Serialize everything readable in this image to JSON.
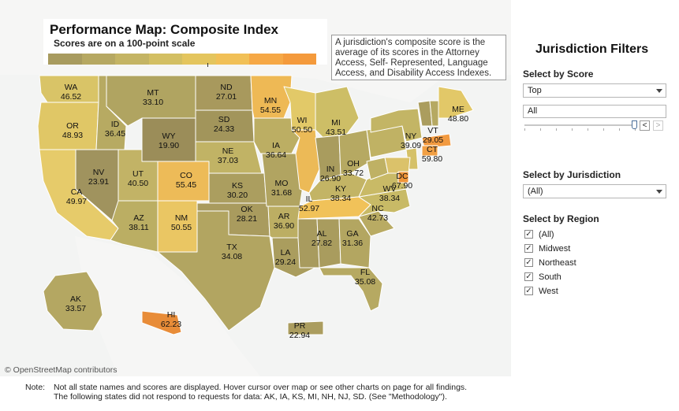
{
  "map": {
    "title": "Performance Map: Composite Index",
    "subtitle": "Scores are on a 100-point scale",
    "info_text": "A jurisdiction's composite score is the average of its scores in the Attorney Access, Self- Represented, Language Access, and Disability Access Indexes.",
    "attribution": "© OpenStreetMap contributors",
    "legend_colors": [
      "#a89b5f",
      "#b6a862",
      "#c4b464",
      "#d3bf63",
      "#e4c55e",
      "#f1c057",
      "#f6a846",
      "#f49a3c"
    ],
    "states": [
      {
        "abbr": "WA",
        "score": "46.52"
      },
      {
        "abbr": "OR",
        "score": "48.93"
      },
      {
        "abbr": "CA",
        "score": "49.97"
      },
      {
        "abbr": "ID",
        "score": "36.45"
      },
      {
        "abbr": "NV",
        "score": "23.91"
      },
      {
        "abbr": "MT",
        "score": "33.10"
      },
      {
        "abbr": "WY",
        "score": "19.90"
      },
      {
        "abbr": "UT",
        "score": "40.50"
      },
      {
        "abbr": "AZ",
        "score": "38.11"
      },
      {
        "abbr": "CO",
        "score": "55.45"
      },
      {
        "abbr": "NM",
        "score": "50.55"
      },
      {
        "abbr": "ND",
        "score": "27.01"
      },
      {
        "abbr": "SD",
        "score": "24.33"
      },
      {
        "abbr": "NE",
        "score": "37.03"
      },
      {
        "abbr": "KS",
        "score": "30.20"
      },
      {
        "abbr": "OK",
        "score": "28.21"
      },
      {
        "abbr": "TX",
        "score": "34.08"
      },
      {
        "abbr": "MN",
        "score": "54.55"
      },
      {
        "abbr": "IA",
        "score": "36.64"
      },
      {
        "abbr": "MO",
        "score": "31.68"
      },
      {
        "abbr": "AR",
        "score": "36.90"
      },
      {
        "abbr": "LA",
        "score": "29.24"
      },
      {
        "abbr": "WI",
        "score": "50.50"
      },
      {
        "abbr": "IL",
        "score": "52.97"
      },
      {
        "abbr": "MI",
        "score": "43.51"
      },
      {
        "abbr": "IN",
        "score": "26.90"
      },
      {
        "abbr": "OH",
        "score": "33.72"
      },
      {
        "abbr": "KY",
        "score": "38.34"
      },
      {
        "abbr": "WV",
        "score": "38.34"
      },
      {
        "abbr": "AL",
        "score": "27.82"
      },
      {
        "abbr": "GA",
        "score": "31.36"
      },
      {
        "abbr": "FL",
        "score": "35.08"
      },
      {
        "abbr": "NC",
        "score": "42.73"
      },
      {
        "abbr": "NY",
        "score": "39.09"
      },
      {
        "abbr": "VT",
        "score": "29.05"
      },
      {
        "abbr": "ME",
        "score": "48.80"
      },
      {
        "abbr": "CT",
        "score": "59.80"
      },
      {
        "abbr": "DC",
        "score": "67.90"
      },
      {
        "abbr": "AK",
        "score": "33.57"
      },
      {
        "abbr": "HI",
        "score": "62.23"
      },
      {
        "abbr": "PR",
        "score": "22.94"
      }
    ]
  },
  "note": {
    "label": "Note:",
    "line1": "Not all state names and scores are displayed. Hover cursor over map or see other charts on page for all findings.",
    "line2": "The following states did not respond to requests for data: AK, IA, KS, MI, NH, NJ, SD. (See \"Methodology\")."
  },
  "filters": {
    "title": "Jurisdiction Filters",
    "score": {
      "heading": "Select by Score",
      "selected": "Top",
      "input_value": "All"
    },
    "jurisdiction": {
      "heading": "Select by Jurisdiction",
      "selected": "(All)"
    },
    "region": {
      "heading": "Select by Region",
      "options": [
        {
          "label": "(All)",
          "checked": true
        },
        {
          "label": "Midwest",
          "checked": true
        },
        {
          "label": "Northeast",
          "checked": true
        },
        {
          "label": "South",
          "checked": true
        },
        {
          "label": "West",
          "checked": true
        }
      ]
    },
    "stepper_prev": "<",
    "stepper_next": ">"
  }
}
